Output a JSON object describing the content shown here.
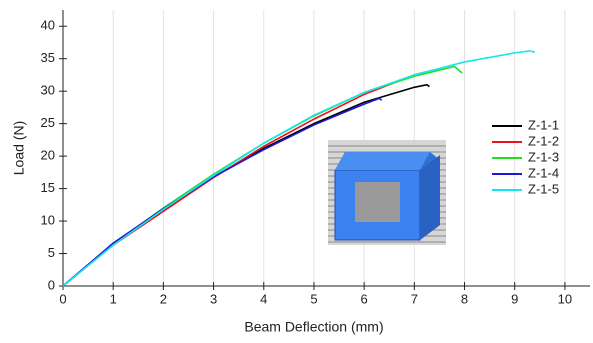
{
  "chart_data": {
    "type": "line",
    "xlabel": "Beam Deflection (mm)",
    "ylabel": "Load (N)",
    "xlim": [
      0,
      10.5
    ],
    "ylim": [
      0,
      42.5
    ],
    "xticks": [
      0,
      1,
      2,
      3,
      4,
      5,
      6,
      7,
      8,
      9,
      10
    ],
    "yticks": [
      0,
      5,
      10,
      15,
      20,
      25,
      30,
      35,
      40
    ],
    "xgrid": true,
    "legend": "right",
    "series": [
      {
        "name": "Z-1-1",
        "color": "#000000",
        "x": [
          0,
          1,
          2,
          3,
          4,
          5,
          6,
          7,
          7.25,
          7.3
        ],
        "values": [
          0,
          6.5,
          11.8,
          16.8,
          21.2,
          25,
          28.3,
          30.6,
          31,
          30.7
        ]
      },
      {
        "name": "Z-1-2",
        "color": "#e8141c",
        "x": [
          0,
          1,
          2,
          3,
          4,
          5,
          6,
          7,
          7.25
        ],
        "values": [
          0,
          6.3,
          11.5,
          16.7,
          21.5,
          25.7,
          29.5,
          32.5,
          33
        ]
      },
      {
        "name": "Z-1-3",
        "color": "#22dd22",
        "x": [
          0,
          1,
          2,
          3,
          4,
          5,
          6,
          7,
          7.8,
          7.95
        ],
        "values": [
          0,
          6.5,
          12,
          17.2,
          22,
          26.2,
          29.8,
          32.3,
          33.8,
          32.8
        ]
      },
      {
        "name": "Z-1-4",
        "color": "#1a1ad6",
        "x": [
          0,
          1,
          2,
          3,
          4,
          5,
          6,
          6.3,
          6.35
        ],
        "values": [
          0,
          6.6,
          11.9,
          16.8,
          21,
          24.8,
          28,
          28.9,
          28.6
        ]
      },
      {
        "name": "Z-1-5",
        "color": "#14e6f0",
        "x": [
          0,
          1,
          2,
          3,
          4,
          5,
          6,
          7,
          8,
          9,
          9.3,
          9.4
        ],
        "values": [
          0,
          6.3,
          11.8,
          17,
          22,
          26.3,
          29.8,
          32.5,
          34.5,
          35.9,
          36.2,
          36
        ]
      }
    ]
  }
}
